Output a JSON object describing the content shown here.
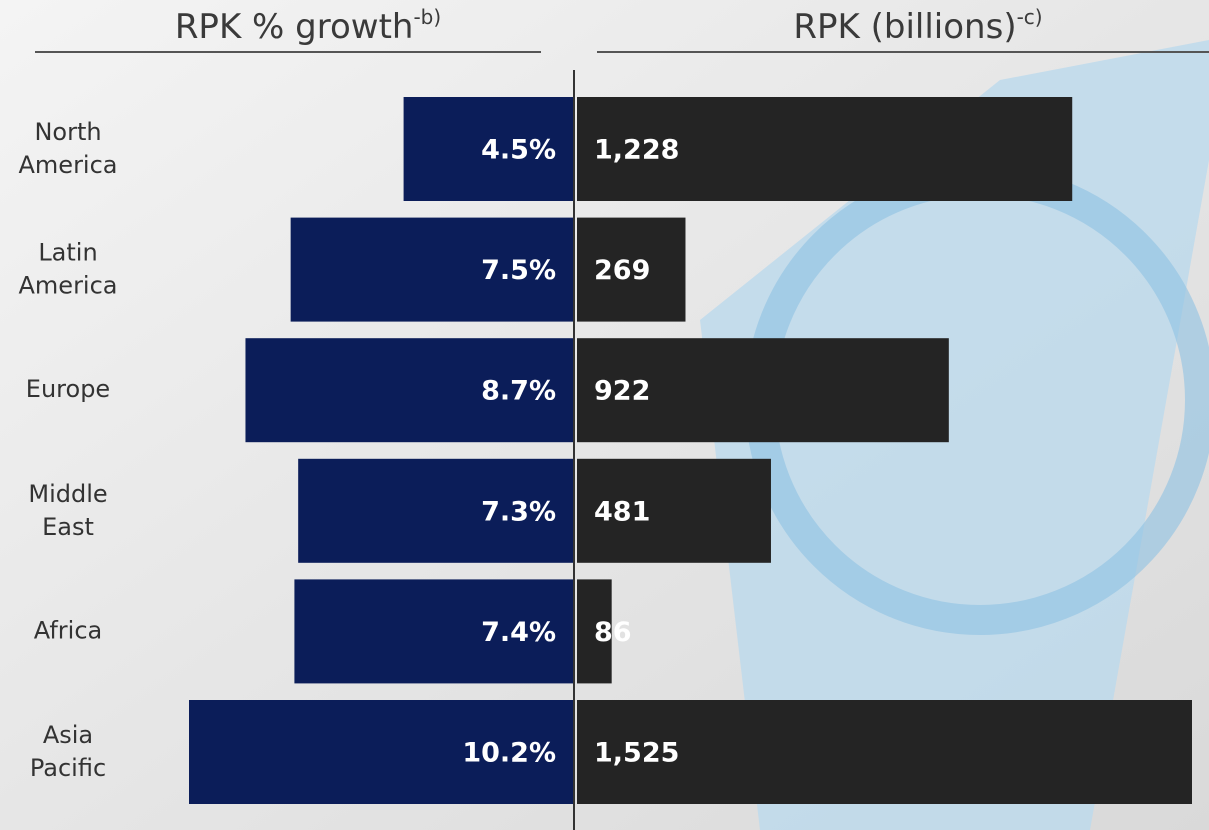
{
  "chart_data": [
    {
      "type": "bar",
      "title": "RPK % growth",
      "title_note": "-b)",
      "categories": [
        "North America",
        "Latin America",
        "Europe",
        "Middle East",
        "Africa",
        "Asia Pacific"
      ],
      "values": [
        4.5,
        7.5,
        8.7,
        7.3,
        7.4,
        10.2
      ],
      "value_labels": [
        "4.5%",
        "7.5%",
        "8.7%",
        "7.3%",
        "7.4%",
        "10.2%"
      ],
      "color": "#0b1d59"
    },
    {
      "type": "bar",
      "title": "RPK (billions)",
      "title_note": "-c)",
      "values": [
        1228,
        269,
        922,
        481,
        86,
        1525
      ],
      "value_labels": [
        "1,228",
        "269",
        "922",
        "481",
        "86",
        "1,525"
      ],
      "color": "#242424"
    }
  ]
}
